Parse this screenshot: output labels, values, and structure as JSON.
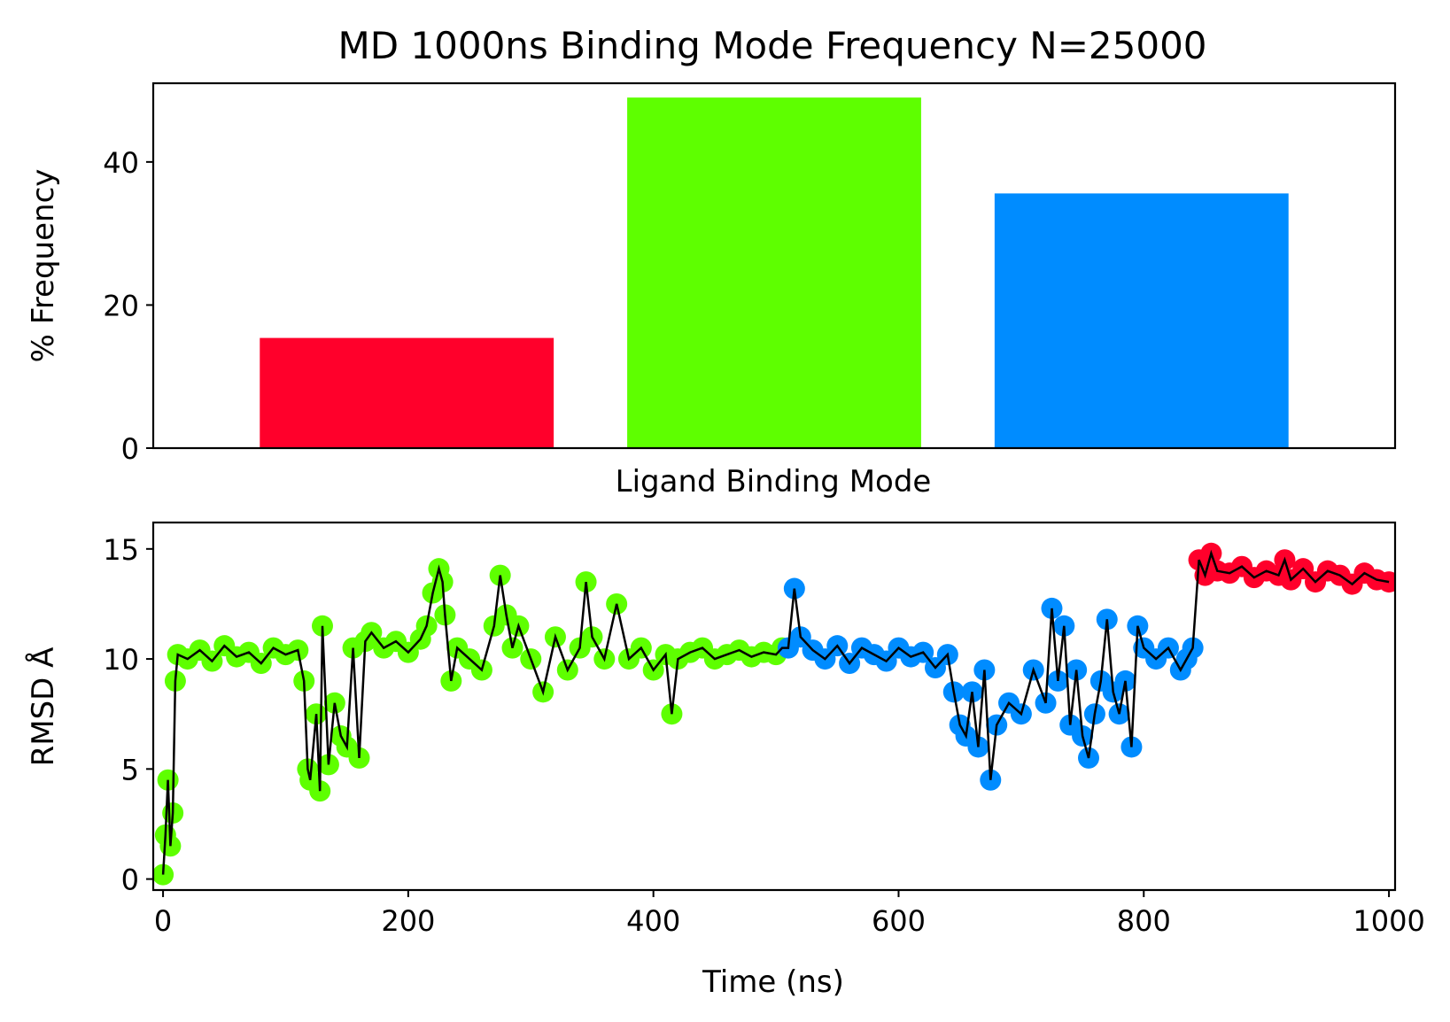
{
  "chart_data": [
    {
      "type": "bar",
      "title": "MD 1000ns Binding Mode Frequency N=25000",
      "xlabel": "Ligand Binding Mode",
      "ylabel": "% Frequency",
      "ylim": [
        0,
        51
      ],
      "yticks": [
        0,
        20,
        40
      ],
      "grid": false,
      "legend": "none",
      "bars": [
        {
          "value": 15.4,
          "color": "#ff002b"
        },
        {
          "value": 49.0,
          "color": "#5eff00"
        },
        {
          "value": 35.6,
          "color": "#008cff"
        }
      ]
    },
    {
      "type": "scatter",
      "xlabel": "Time (ns)",
      "ylabel": "RMSD Å",
      "xlim": [
        -8,
        1005
      ],
      "ylim": [
        -0.5,
        16.2
      ],
      "xticks": [
        0,
        200,
        400,
        600,
        800,
        1000
      ],
      "yticks": [
        0,
        5,
        10,
        15
      ],
      "grid": false,
      "legend": "none",
      "mode_colors": {
        "red": "#ff002b",
        "green": "#5eff00",
        "blue": "#008cff"
      },
      "line_color": "#000000",
      "series": [
        {
          "mode": "green",
          "x": [
            0,
            2,
            4,
            6,
            8,
            10,
            12,
            20,
            30,
            40,
            50,
            60,
            70,
            80,
            90,
            100,
            110,
            115,
            118,
            120,
            125,
            128,
            130,
            135,
            140,
            145,
            150,
            155,
            160,
            165,
            170,
            180,
            190,
            200,
            210,
            215,
            220,
            225,
            228,
            230,
            235,
            240,
            250,
            260,
            270,
            275,
            280,
            285,
            290,
            300,
            310,
            320,
            330,
            340,
            345,
            350,
            360,
            370,
            380,
            390,
            400,
            410,
            415,
            420,
            430,
            440,
            450,
            460,
            470,
            480,
            490,
            500,
            505
          ],
          "y": [
            0.2,
            2.0,
            4.5,
            1.5,
            3.0,
            9.0,
            10.2,
            10.0,
            10.4,
            9.9,
            10.6,
            10.1,
            10.3,
            9.8,
            10.5,
            10.2,
            10.4,
            9.0,
            5.0,
            4.5,
            7.5,
            4.0,
            11.5,
            5.2,
            8.0,
            6.5,
            6.0,
            10.5,
            5.5,
            10.8,
            11.2,
            10.5,
            10.8,
            10.3,
            10.9,
            11.5,
            13.0,
            14.1,
            13.5,
            12.0,
            9.0,
            10.5,
            10.0,
            9.5,
            11.5,
            13.8,
            12.0,
            10.5,
            11.5,
            10.0,
            8.5,
            11.0,
            9.5,
            10.5,
            13.5,
            11.0,
            10.0,
            12.5,
            10.0,
            10.5,
            9.5,
            10.2,
            7.5,
            10.0,
            10.3,
            10.5,
            10.0,
            10.2,
            10.4,
            10.1,
            10.3,
            10.2,
            10.5
          ]
        },
        {
          "mode": "blue",
          "x": [
            510,
            515,
            520,
            530,
            540,
            550,
            560,
            570,
            580,
            590,
            600,
            610,
            620,
            630,
            640,
            645,
            650,
            655,
            660,
            665,
            670,
            675,
            680,
            690,
            700,
            710,
            720,
            725,
            730,
            735,
            740,
            745,
            750,
            755,
            760,
            765,
            770,
            775,
            780,
            785,
            790,
            795,
            800,
            810,
            820,
            830,
            835,
            840
          ],
          "y": [
            10.5,
            13.2,
            11.0,
            10.4,
            10.0,
            10.6,
            9.8,
            10.5,
            10.2,
            9.9,
            10.5,
            10.1,
            10.3,
            9.6,
            10.2,
            8.5,
            7.0,
            6.5,
            8.5,
            6.0,
            9.5,
            4.5,
            7.0,
            8.0,
            7.5,
            9.5,
            8.0,
            12.3,
            9.0,
            11.5,
            7.0,
            9.5,
            6.5,
            5.5,
            7.5,
            9.0,
            11.8,
            8.5,
            7.5,
            9.0,
            6.0,
            11.5,
            10.5,
            10.0,
            10.5,
            9.5,
            10.0,
            10.5
          ]
        },
        {
          "mode": "red",
          "x": [
            845,
            850,
            855,
            860,
            870,
            880,
            890,
            900,
            910,
            915,
            920,
            930,
            940,
            950,
            960,
            970,
            980,
            990,
            1000
          ],
          "y": [
            14.5,
            13.8,
            14.8,
            14.0,
            13.9,
            14.2,
            13.7,
            14.0,
            13.8,
            14.5,
            13.6,
            14.1,
            13.5,
            14.0,
            13.8,
            13.4,
            13.9,
            13.6,
            13.5
          ]
        }
      ]
    }
  ]
}
